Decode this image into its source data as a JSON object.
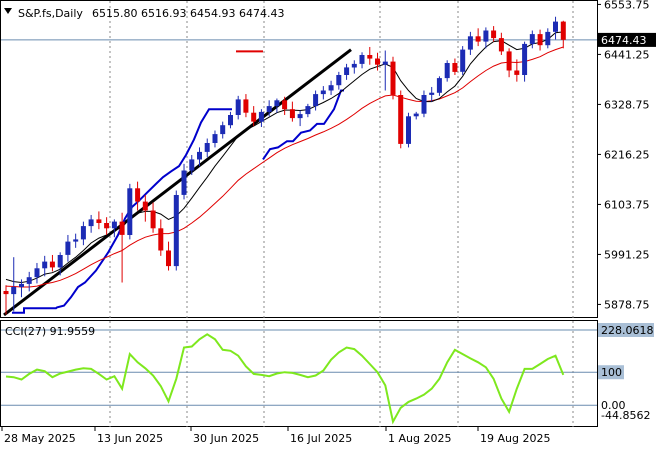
{
  "header": {
    "symbol": "S&P.fs,Daily",
    "ohlc": "6515.80 6516.93 6454.93 6474.43"
  },
  "price_scale": {
    "ticks": [
      "6553.75",
      "6441.25",
      "6328.75",
      "6216.25",
      "6103.75",
      "5991.25",
      "5878.75"
    ],
    "current_label": "6474.43"
  },
  "cci": {
    "label": "CCI(27) 91.9559",
    "ticks": [
      "228.0618",
      "100",
      "0.00",
      "-44.8562"
    ]
  },
  "x_axis": {
    "labels": [
      "28 May 2025",
      "13 Jun 2025",
      "30 Jun 2025",
      "16 Jul 2025",
      "1 Aug 2025",
      "19 Aug 2025"
    ]
  },
  "colors": {
    "bull": "#1c2bb4",
    "bear": "#e00000",
    "ma_fast": "#000000",
    "ma_slow": "#e00000",
    "trail": "#0000cc",
    "trend": "#000000",
    "cci": "#7ee81e",
    "grid": "#8a8a8a",
    "badge": "#000000"
  },
  "chart_data": {
    "type": "candlestick",
    "candles": [
      [
        5909,
        5922,
        5856,
        5902
      ],
      [
        5902,
        5985,
        5863,
        5918
      ],
      [
        5918,
        5935,
        5895,
        5925
      ],
      [
        5925,
        5952,
        5908,
        5940
      ],
      [
        5940,
        5972,
        5926,
        5960
      ],
      [
        5960,
        5988,
        5942,
        5975
      ],
      [
        5975,
        5990,
        5953,
        5962
      ],
      [
        5962,
        5996,
        5944,
        5990
      ],
      [
        5990,
        6035,
        5975,
        6020
      ],
      [
        6020,
        6038,
        6006,
        6025
      ],
      [
        6025,
        6065,
        6012,
        6055
      ],
      [
        6055,
        6080,
        6040,
        6070
      ],
      [
        6070,
        6088,
        6048,
        6062
      ],
      [
        6062,
        6075,
        6035,
        6050
      ],
      [
        6050,
        6070,
        6030,
        6065
      ],
      [
        6065,
        6085,
        5928,
        6035
      ],
      [
        6035,
        6150,
        6025,
        6140
      ],
      [
        6140,
        6155,
        6090,
        6110
      ],
      [
        6110,
        6125,
        6065,
        6090
      ],
      [
        6090,
        6108,
        6040,
        6050
      ],
      [
        6050,
        6070,
        5988,
        6000
      ],
      [
        6000,
        6020,
        5955,
        5965
      ],
      [
        5965,
        6135,
        5955,
        6125
      ],
      [
        6125,
        6195,
        6115,
        6180
      ],
      [
        6180,
        6215,
        6170,
        6205
      ],
      [
        6205,
        6232,
        6190,
        6222
      ],
      [
        6222,
        6252,
        6210,
        6242
      ],
      [
        6242,
        6270,
        6232,
        6262
      ],
      [
        6262,
        6290,
        6252,
        6282
      ],
      [
        6282,
        6312,
        6275,
        6305
      ],
      [
        6305,
        6348,
        6295,
        6340
      ],
      [
        6340,
        6352,
        6300,
        6310
      ],
      [
        6310,
        6325,
        6280,
        6290
      ],
      [
        6290,
        6318,
        6278,
        6312
      ],
      [
        6312,
        6338,
        6302,
        6325
      ],
      [
        6325,
        6342,
        6310,
        6338
      ],
      [
        6338,
        6346,
        6305,
        6318
      ],
      [
        6318,
        6335,
        6290,
        6298
      ],
      [
        6298,
        6315,
        6280,
        6307
      ],
      [
        6307,
        6330,
        6300,
        6325
      ],
      [
        6325,
        6360,
        6315,
        6352
      ],
      [
        6352,
        6370,
        6340,
        6360
      ],
      [
        6360,
        6382,
        6350,
        6372
      ],
      [
        6372,
        6402,
        6362,
        6395
      ],
      [
        6395,
        6420,
        6384,
        6412
      ],
      [
        6412,
        6428,
        6398,
        6420
      ],
      [
        6420,
        6446,
        6410,
        6440
      ],
      [
        6440,
        6458,
        6418,
        6432
      ],
      [
        6432,
        6445,
        6405,
        6418
      ],
      [
        6418,
        6450,
        6360,
        6425
      ],
      [
        6425,
        6436,
        6340,
        6350
      ],
      [
        6350,
        6360,
        6230,
        6240
      ],
      [
        6240,
        6310,
        6232,
        6302
      ],
      [
        6302,
        6312,
        6295,
        6308
      ],
      [
        6308,
        6360,
        6300,
        6350
      ],
      [
        6350,
        6368,
        6335,
        6355
      ],
      [
        6355,
        6392,
        6348,
        6388
      ],
      [
        6388,
        6428,
        6380,
        6422
      ],
      [
        6422,
        6432,
        6395,
        6402
      ],
      [
        6402,
        6460,
        6395,
        6452
      ],
      [
        6452,
        6492,
        6440,
        6482
      ],
      [
        6482,
        6500,
        6460,
        6470
      ],
      [
        6470,
        6502,
        6455,
        6495
      ],
      [
        6495,
        6505,
        6470,
        6478
      ],
      [
        6478,
        6490,
        6440,
        6448
      ],
      [
        6448,
        6455,
        6390,
        6405
      ],
      [
        6405,
        6430,
        6380,
        6395
      ],
      [
        6395,
        6470,
        6380,
        6465
      ],
      [
        6465,
        6495,
        6455,
        6487
      ],
      [
        6487,
        6497,
        6450,
        6462
      ],
      [
        6462,
        6500,
        6455,
        6492
      ],
      [
        6492,
        6526,
        6475,
        6515
      ],
      [
        6515,
        6517,
        6455,
        6474
      ]
    ],
    "ma_fast": [
      5935,
      5930,
      5928,
      5931,
      5938,
      5947,
      5950,
      5958,
      5972,
      5985,
      6000,
      6017,
      6028,
      6035,
      6045,
      6052,
      6072,
      6084,
      6088,
      6088,
      6082,
      6070,
      6078,
      6095,
      6118,
      6142,
      6165,
      6190,
      6212,
      6235,
      6258,
      6272,
      6280,
      6290,
      6300,
      6310,
      6316,
      6316,
      6315,
      6317,
      6325,
      6333,
      6342,
      6353,
      6368,
      6382,
      6396,
      6408,
      6414,
      6420,
      6412,
      6382,
      6360,
      6342,
      6335,
      6335,
      6342,
      6357,
      6370,
      6392,
      6420,
      6440,
      6458,
      6470,
      6472,
      6462,
      6452,
      6455,
      6465,
      6468,
      6475,
      6490,
      6492
    ],
    "ma_slow": [
      5920,
      5919,
      5918,
      5918,
      5920,
      5925,
      5928,
      5933,
      5940,
      5948,
      5958,
      5968,
      5977,
      5985,
      5993,
      6000,
      6012,
      6022,
      6030,
      6035,
      6038,
      6038,
      6042,
      6050,
      6062,
      6075,
      6090,
      6106,
      6122,
      6140,
      6158,
      6172,
      6184,
      6196,
      6208,
      6220,
      6230,
      6238,
      6245,
      6252,
      6260,
      6267,
      6275,
      6284,
      6295,
      6307,
      6320,
      6331,
      6340,
      6348,
      6350,
      6345,
      6340,
      6336,
      6335,
      6337,
      6341,
      6348,
      6355,
      6366,
      6380,
      6393,
      6405,
      6415,
      6422,
      6424,
      6423,
      6425,
      6430,
      6436,
      6445,
      6452,
      6458
    ],
    "trailing_stop": [
      [
        12,
        5860
      ],
      [
        24,
        5860
      ],
      [
        24,
        5870
      ],
      [
        48,
        5870
      ],
      [
        56,
        5870
      ],
      [
        57,
        5872
      ],
      [
        64,
        5876
      ],
      [
        71,
        5895
      ],
      [
        78,
        5918
      ],
      [
        85,
        5928
      ],
      [
        96,
        5955
      ],
      [
        108,
        5995
      ],
      [
        118,
        6035
      ],
      [
        125,
        6072
      ],
      [
        132,
        6098
      ],
      [
        139,
        6112
      ],
      [
        147,
        6130
      ],
      [
        156,
        6150
      ],
      [
        163,
        6165
      ],
      [
        171,
        6178
      ],
      [
        179,
        6190
      ],
      [
        186,
        6215
      ],
      [
        194,
        6250
      ],
      [
        201,
        6288
      ],
      [
        209,
        6318
      ],
      [
        216,
        6318
      ],
      [
        222,
        6318
      ],
      [
        232,
        6318
      ],
      [
        232,
        null
      ],
      [
        263,
        null
      ],
      [
        263,
        6205
      ],
      [
        270,
        6228
      ],
      [
        278,
        6232
      ],
      [
        287,
        6246
      ],
      [
        293,
        6246
      ],
      [
        301,
        6265
      ],
      [
        310,
        6270
      ],
      [
        317,
        6285
      ],
      [
        324,
        6285
      ],
      [
        334,
        6318
      ],
      [
        341,
        6360
      ],
      [
        344,
        6360
      ]
    ],
    "trendline": [
      [
        4,
        5855
      ],
      [
        351,
        6452
      ]
    ],
    "resistance": [
      [
        236,
        6448
      ],
      [
        263,
        6448
      ]
    ],
    "cci_values": [
      87,
      85,
      78,
      95,
      108,
      103,
      85,
      96,
      102,
      108,
      112,
      110,
      95,
      78,
      88,
      50,
      155,
      130,
      112,
      90,
      58,
      12,
      80,
      175,
      178,
      200,
      215,
      200,
      168,
      165,
      150,
      118,
      95,
      92,
      88,
      96,
      100,
      98,
      92,
      85,
      90,
      105,
      138,
      160,
      175,
      170,
      150,
      125,
      100,
      60,
      -50,
      -8,
      10,
      20,
      32,
      50,
      80,
      130,
      168,
      155,
      142,
      130,
      115,
      80,
      20,
      -20,
      50,
      110,
      110,
      125,
      140,
      150,
      92
    ],
    "price_ylim": [
      5843.68,
      6563.68
    ],
    "cci_ylim": [
      -44.8562,
      228.0618
    ],
    "x_labels": [
      "28 May 2025",
      "13 Jun 2025",
      "30 Jun 2025",
      "16 Jul 2025",
      "1 Aug 2025",
      "19 Aug 2025"
    ]
  }
}
